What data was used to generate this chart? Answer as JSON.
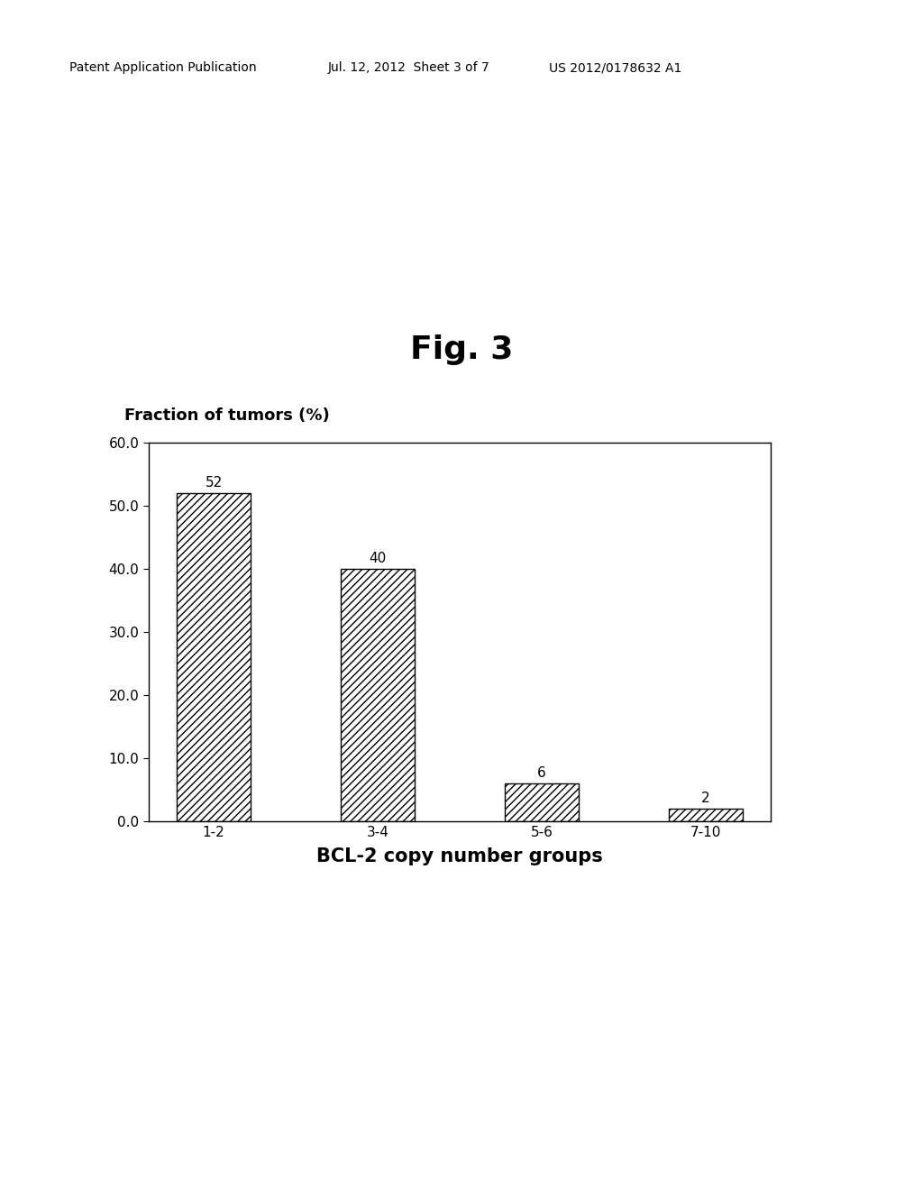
{
  "fig_title": "Fig. 3",
  "ylabel": "Fraction of tumors (%)",
  "xlabel": "BCL-2 copy number groups",
  "categories": [
    "1-2",
    "3-4",
    "5-6",
    "7-10"
  ],
  "values": [
    52,
    40,
    6,
    2
  ],
  "ylim": [
    0,
    60
  ],
  "yticks": [
    0.0,
    10.0,
    20.0,
    30.0,
    40.0,
    50.0,
    60.0
  ],
  "bar_color": "white",
  "bar_edgecolor": "#000000",
  "hatch_pattern": "////",
  "background_color": "#ffffff",
  "patent_text": "Patent Application Publication",
  "patent_date": "Jul. 12, 2012  Sheet 3 of 7",
  "patent_number": "US 2012/0178632 A1",
  "title_fontsize": 26,
  "tick_fontsize": 11,
  "bar_label_fontsize": 11,
  "xlabel_fontsize": 15,
  "ylabel_fontsize": 13,
  "patent_fontsize": 10
}
